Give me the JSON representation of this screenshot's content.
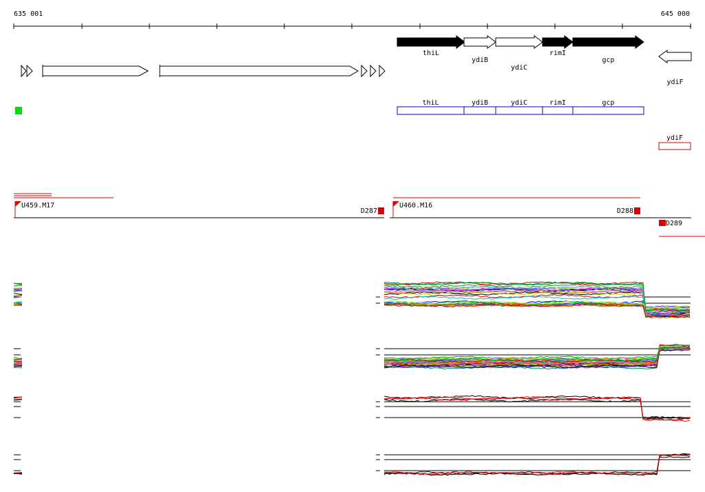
{
  "ruler": {
    "start": "635 001",
    "end": "645 000"
  },
  "genes": [
    {
      "label": "thiL"
    },
    {
      "label": "ydiB"
    },
    {
      "label": "ydiC"
    },
    {
      "label": "rimI"
    },
    {
      "label": "gcp"
    },
    {
      "label": "ydiF"
    }
  ],
  "transcripts": [
    {
      "label": "thiL"
    },
    {
      "label": "ydiB"
    },
    {
      "label": "ydiC"
    },
    {
      "label": "rimI"
    },
    {
      "label": "gcp"
    },
    {
      "label": "ydiF"
    }
  ],
  "markers": [
    {
      "label": "U459.M17"
    },
    {
      "label": "D287"
    },
    {
      "label": "U460.M16"
    },
    {
      "label": "D288"
    },
    {
      "label": "D289"
    }
  ]
}
